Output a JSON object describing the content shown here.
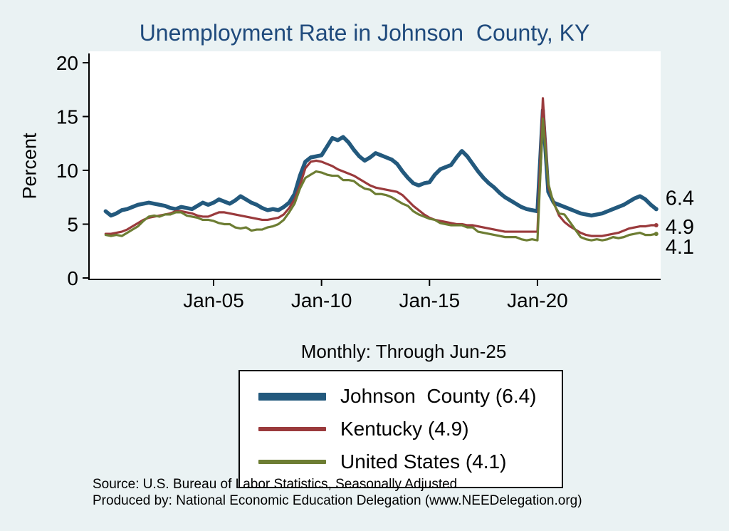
{
  "page": {
    "background": "#eaf2f3",
    "plot_background": "#ffffff"
  },
  "chart_data": {
    "type": "line",
    "title": "Unemployment Rate in Johnson  County, KY",
    "title_color": "#1f4a7c",
    "subtitle": "Monthly: Through Jun-25",
    "ylabel": "Percent",
    "xlabel": "",
    "ylim": [
      0,
      20
    ],
    "xlim": [
      1999.7,
      2026.2
    ],
    "yticks": [
      0,
      5,
      10,
      15,
      20
    ],
    "xticks": [
      {
        "value": 2005,
        "label": "Jan-05"
      },
      {
        "value": 2010,
        "label": "Jan-10"
      },
      {
        "value": 2015,
        "label": "Jan-15"
      },
      {
        "value": 2020,
        "label": "Jan-20"
      }
    ],
    "x": [
      2000,
      2000.25,
      2000.5,
      2000.75,
      2001,
      2001.25,
      2001.5,
      2001.75,
      2002,
      2002.25,
      2002.5,
      2002.75,
      2003,
      2003.25,
      2003.5,
      2003.75,
      2004,
      2004.25,
      2004.5,
      2004.75,
      2005,
      2005.25,
      2005.5,
      2005.75,
      2006,
      2006.25,
      2006.5,
      2006.75,
      2007,
      2007.25,
      2007.5,
      2007.75,
      2008,
      2008.25,
      2008.5,
      2008.75,
      2009,
      2009.25,
      2009.5,
      2009.75,
      2010,
      2010.25,
      2010.5,
      2010.75,
      2011,
      2011.25,
      2011.5,
      2011.75,
      2012,
      2012.25,
      2012.5,
      2012.75,
      2013,
      2013.25,
      2013.5,
      2013.75,
      2014,
      2014.25,
      2014.5,
      2014.75,
      2015,
      2015.25,
      2015.5,
      2015.75,
      2016,
      2016.25,
      2016.5,
      2016.75,
      2017,
      2017.25,
      2017.5,
      2017.75,
      2018,
      2018.25,
      2018.5,
      2018.75,
      2019,
      2019.25,
      2019.5,
      2019.75,
      2020,
      2020.25,
      2020.5,
      2020.75,
      2021,
      2021.25,
      2021.5,
      2021.75,
      2022,
      2022.25,
      2022.5,
      2022.75,
      2023,
      2023.25,
      2023.5,
      2023.75,
      2024,
      2024.25,
      2024.5,
      2024.75,
      2025,
      2025.25,
      2025.5
    ],
    "series": [
      {
        "name": "Johnson  County",
        "legend_label": "Johnson  County (6.4)",
        "color": "#23597d",
        "width": 5.5,
        "end_label": "6.4",
        "end_label_dy": -16,
        "values": [
          6.2,
          5.8,
          6.0,
          6.3,
          6.4,
          6.6,
          6.8,
          6.9,
          7.0,
          6.9,
          6.8,
          6.7,
          6.5,
          6.4,
          6.6,
          6.5,
          6.4,
          6.7,
          7.0,
          6.8,
          7.0,
          7.3,
          7.1,
          6.9,
          7.2,
          7.6,
          7.3,
          7.0,
          6.8,
          6.5,
          6.3,
          6.4,
          6.3,
          6.6,
          7.0,
          7.8,
          9.5,
          10.8,
          11.2,
          11.3,
          11.4,
          12.2,
          13.0,
          12.8,
          13.1,
          12.6,
          11.9,
          11.3,
          10.9,
          11.2,
          11.6,
          11.4,
          11.2,
          11.0,
          10.6,
          9.9,
          9.3,
          8.8,
          8.6,
          8.8,
          8.9,
          9.6,
          10.1,
          10.3,
          10.5,
          11.2,
          11.8,
          11.3,
          10.6,
          9.9,
          9.3,
          8.8,
          8.4,
          7.9,
          7.5,
          7.2,
          6.9,
          6.6,
          6.4,
          6.3,
          6.2,
          15.6,
          8.0,
          7.0,
          6.8,
          6.6,
          6.4,
          6.2,
          6.0,
          5.9,
          5.8,
          5.9,
          6.0,
          6.2,
          6.4,
          6.6,
          6.8,
          7.1,
          7.4,
          7.6,
          7.3,
          6.8,
          6.4
        ]
      },
      {
        "name": "Kentucky",
        "legend_label": "Kentucky (4.9)",
        "color": "#9a3a3c",
        "width": 3.2,
        "end_label": "4.9",
        "end_label_dy": 2,
        "values": [
          4.1,
          4.1,
          4.2,
          4.3,
          4.5,
          4.8,
          5.1,
          5.4,
          5.6,
          5.7,
          5.8,
          5.9,
          6.0,
          6.2,
          6.2,
          6.1,
          6.0,
          5.8,
          5.7,
          5.7,
          5.9,
          6.1,
          6.1,
          6.0,
          5.9,
          5.8,
          5.7,
          5.6,
          5.5,
          5.4,
          5.4,
          5.5,
          5.6,
          5.9,
          6.5,
          7.3,
          8.6,
          10.2,
          10.8,
          10.9,
          10.8,
          10.6,
          10.4,
          10.1,
          9.9,
          9.7,
          9.5,
          9.2,
          8.9,
          8.6,
          8.4,
          8.3,
          8.2,
          8.1,
          8.0,
          7.7,
          7.2,
          6.7,
          6.3,
          5.9,
          5.6,
          5.4,
          5.3,
          5.2,
          5.1,
          5.0,
          5.0,
          4.9,
          4.9,
          4.8,
          4.7,
          4.6,
          4.5,
          4.4,
          4.3,
          4.3,
          4.3,
          4.3,
          4.3,
          4.3,
          4.3,
          16.7,
          8.5,
          7.0,
          5.8,
          5.2,
          4.8,
          4.5,
          4.2,
          4.0,
          3.9,
          3.9,
          3.9,
          4.0,
          4.1,
          4.2,
          4.4,
          4.6,
          4.7,
          4.8,
          4.8,
          4.9,
          4.9
        ]
      },
      {
        "name": "United States",
        "legend_label": "United States (4.1)",
        "color": "#6d7d33",
        "width": 3.2,
        "end_label": "4.1",
        "end_label_dy": 18,
        "values": [
          4.0,
          3.9,
          4.0,
          3.9,
          4.2,
          4.5,
          4.8,
          5.3,
          5.7,
          5.8,
          5.7,
          5.9,
          5.9,
          6.1,
          6.1,
          5.8,
          5.7,
          5.6,
          5.4,
          5.4,
          5.3,
          5.1,
          5.0,
          5.0,
          4.7,
          4.6,
          4.7,
          4.4,
          4.5,
          4.5,
          4.7,
          4.8,
          5.0,
          5.4,
          6.1,
          6.9,
          8.3,
          9.3,
          9.6,
          9.9,
          9.8,
          9.6,
          9.5,
          9.5,
          9.1,
          9.1,
          9.0,
          8.6,
          8.3,
          8.2,
          7.8,
          7.8,
          7.7,
          7.5,
          7.2,
          6.9,
          6.7,
          6.2,
          5.9,
          5.7,
          5.5,
          5.4,
          5.1,
          5.0,
          4.9,
          4.9,
          4.9,
          4.7,
          4.7,
          4.3,
          4.2,
          4.1,
          4.0,
          3.9,
          3.8,
          3.8,
          3.8,
          3.6,
          3.5,
          3.6,
          3.5,
          14.8,
          8.8,
          6.9,
          6.0,
          5.9,
          5.2,
          4.5,
          3.8,
          3.6,
          3.5,
          3.6,
          3.5,
          3.6,
          3.8,
          3.7,
          3.8,
          4.0,
          4.1,
          4.2,
          4.0,
          4.0,
          4.1
        ]
      }
    ],
    "legend_position": "bottom-center",
    "grid": false,
    "notes": [
      "Source: U.S. Bureau of Labor Statistics, Seasonally Adjusted",
      "Produced by: National Economic Education Delegation (www.NEEDelegation.org)"
    ]
  }
}
